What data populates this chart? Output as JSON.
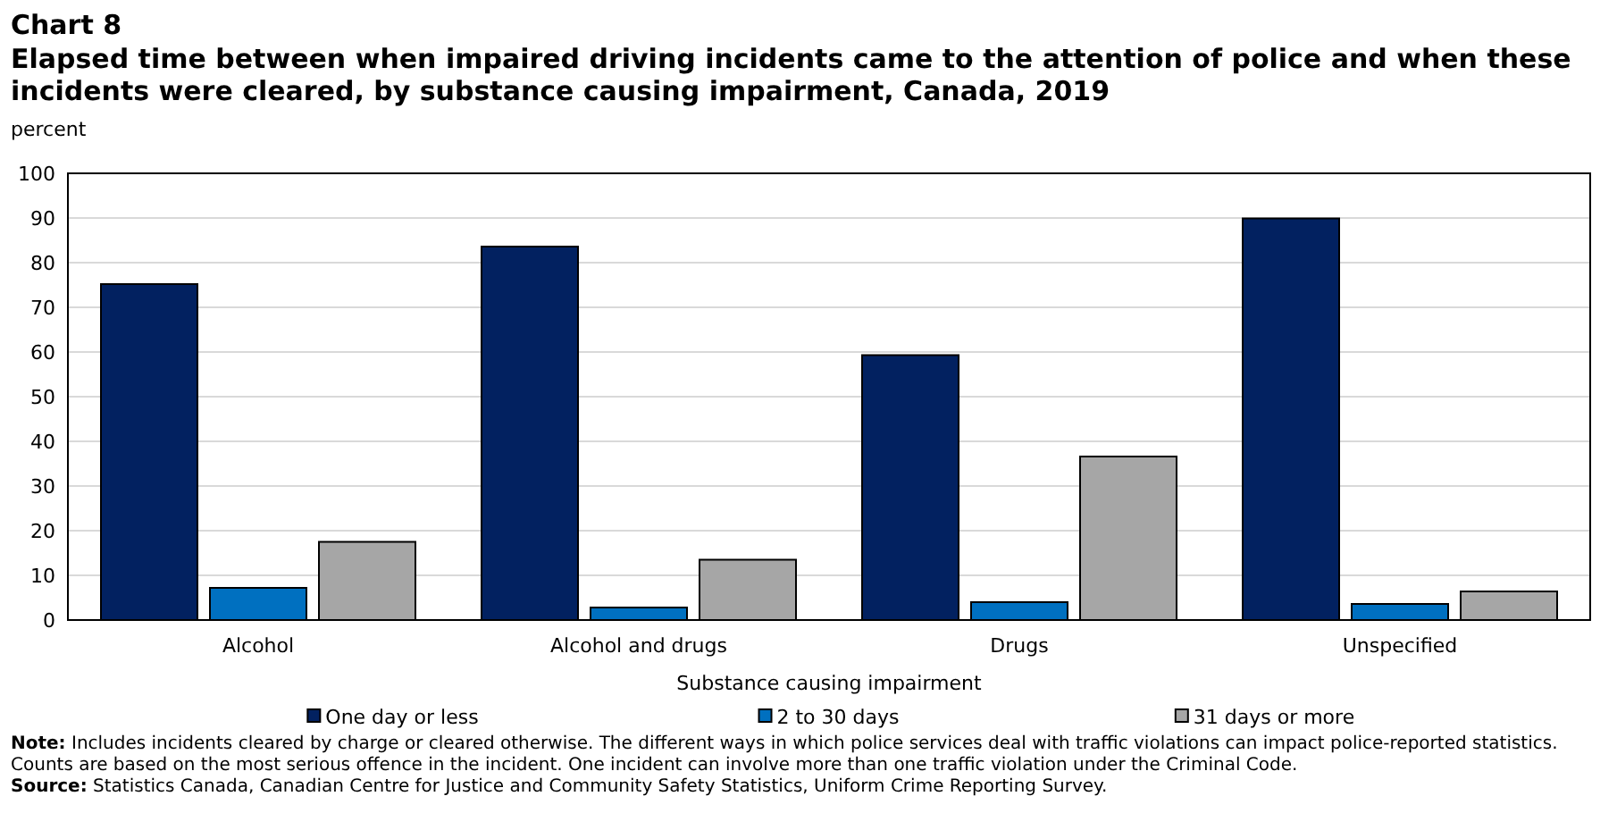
{
  "chart_data": {
    "type": "bar",
    "title": "Chart 8",
    "subtitle": "Elapsed time between when impaired driving incidents came to the attention of police and when these incidents were cleared, by substance causing impairment, Canada, 2019",
    "ylabel": "percent",
    "xlabel": "Substance causing impairment",
    "categories": [
      "Alcohol",
      "Alcohol and drugs",
      "Drugs",
      "Unspecified"
    ],
    "series": [
      {
        "name": "One day or less",
        "color": "#022160",
        "values": [
          75.2,
          83.6,
          59.3,
          89.9
        ]
      },
      {
        "name": "2 to 30 days",
        "color": "#0070c0",
        "values": [
          7.2,
          2.8,
          4.0,
          3.6
        ]
      },
      {
        "name": "31 days or more",
        "color": "#a6a6a6",
        "values": [
          17.5,
          13.5,
          36.6,
          6.4
        ]
      }
    ],
    "ylim": [
      0,
      100
    ],
    "yticks": [
      0,
      10,
      20,
      30,
      40,
      50,
      60,
      70,
      80,
      90,
      100
    ],
    "grid": "y",
    "legend": "bottom",
    "annotations": [
      "Note: Includes incidents cleared by charge or cleared otherwise. The different ways in which police services deal with traffic violations can impact police-reported statistics. Counts are based on the most serious offence in the incident. One incident can involve more than one traffic violation under the Criminal Code.",
      "Source: Statistics Canada, Canadian Centre for Justice and Community Safety Statistics, Uniform Crime Reporting Survey."
    ]
  }
}
